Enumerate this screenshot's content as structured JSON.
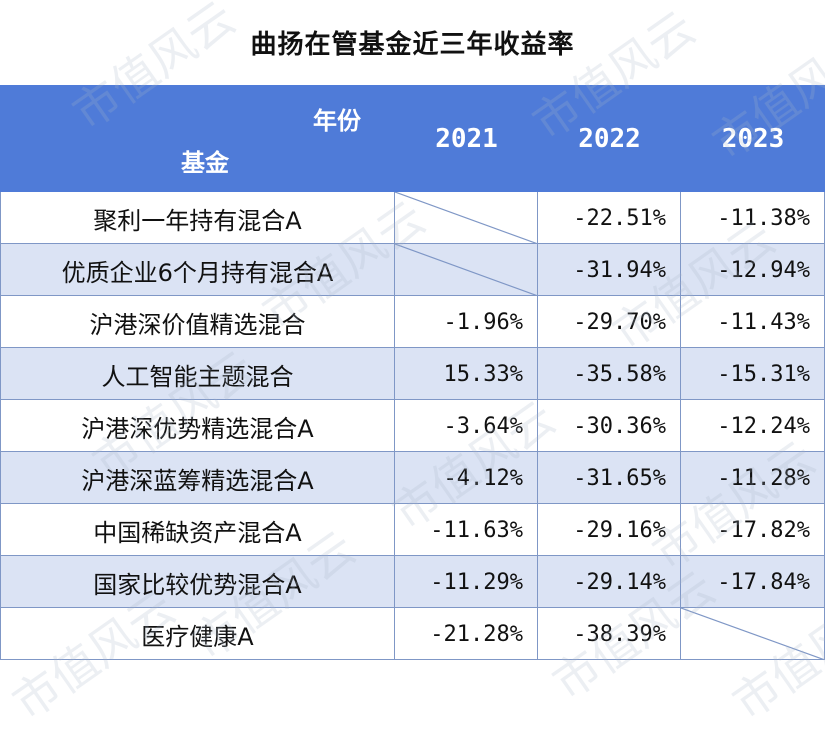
{
  "title": "曲扬在管基金近三年收益率",
  "header": {
    "year_label": "年份",
    "fund_label": "基金",
    "years": [
      "2021",
      "2022",
      "2023"
    ]
  },
  "rows": [
    {
      "fund": "聚利一年持有混合A",
      "v2021": "",
      "v2022": "-22.51%",
      "v2023": "-11.38%",
      "blank": "2021"
    },
    {
      "fund": "优质企业6个月持有混合A",
      "v2021": "",
      "v2022": "-31.94%",
      "v2023": "-12.94%",
      "blank": "2021"
    },
    {
      "fund": "沪港深价值精选混合",
      "v2021": "-1.96%",
      "v2022": "-29.70%",
      "v2023": "-11.43%"
    },
    {
      "fund": "人工智能主题混合",
      "v2021": "15.33%",
      "v2022": "-35.58%",
      "v2023": "-15.31%"
    },
    {
      "fund": "沪港深优势精选混合A",
      "v2021": "-3.64%",
      "v2022": "-30.36%",
      "v2023": "-12.24%"
    },
    {
      "fund": "沪港深蓝筹精选混合A",
      "v2021": "-4.12%",
      "v2022": "-31.65%",
      "v2023": "-11.28%"
    },
    {
      "fund": "中国稀缺资产混合A",
      "v2021": "-11.63%",
      "v2022": "-29.16%",
      "v2023": "-17.82%"
    },
    {
      "fund": "国家比较优势混合A",
      "v2021": "-11.29%",
      "v2022": "-29.14%",
      "v2023": "-17.84%"
    },
    {
      "fund": "医疗健康A",
      "v2021": "-21.28%",
      "v2022": "-38.39%",
      "v2023": "",
      "blank": "2023"
    }
  ],
  "watermark_text": "市值风云",
  "colors": {
    "header_bg": "#4f7bd8",
    "alt_row_bg": "#dbe3f4",
    "border": "#7f97c6"
  }
}
